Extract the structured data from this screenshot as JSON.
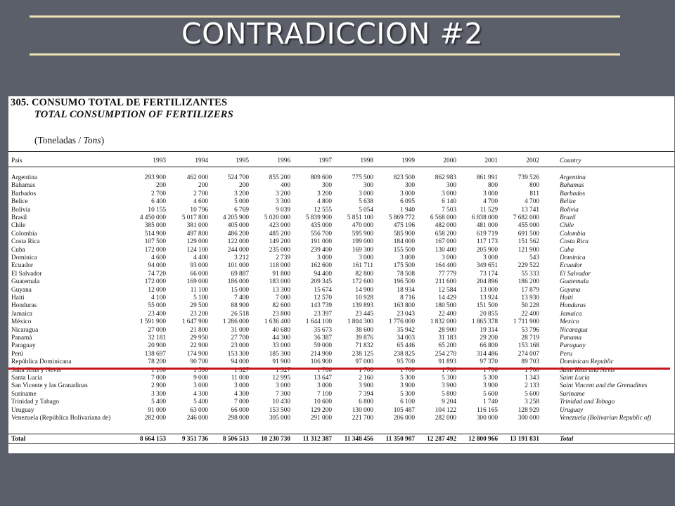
{
  "slide": {
    "title": "CONTRADICCION #2"
  },
  "document": {
    "title_es": "305. CONSUMO TOTAL DE FERTILIZANTES",
    "title_en": "TOTAL CONSUMPTION OF FERTILIZERS",
    "units_open": "(Toneladas / ",
    "units_tons": "Tons",
    "units_close": ")",
    "table": {
      "header_left": "País",
      "years": [
        "1993",
        "1994",
        "1995",
        "1996",
        "1997",
        "1998",
        "1999",
        "2000",
        "2001",
        "2002"
      ],
      "header_right": "Country",
      "rows": [
        {
          "pais": "Argentina",
          "country": "Argentina",
          "values": [
            "293 900",
            "462 000",
            "524 700",
            "855 200",
            "809 600",
            "775 500",
            "823 500",
            "862 983",
            "861 991",
            "739 526"
          ]
        },
        {
          "pais": "Bahamas",
          "country": "Bahamas",
          "values": [
            "200",
            "200",
            "200",
            "400",
            "300",
            "300",
            "300",
            "300",
            "800",
            "800"
          ]
        },
        {
          "pais": "Barbados",
          "country": "Barbados",
          "values": [
            "2 700",
            "2 700",
            "3 200",
            "3 200",
            "3 200",
            "3 000",
            "3 000",
            "3 000",
            "3 000",
            "811"
          ]
        },
        {
          "pais": "Belice",
          "country": "Belize",
          "values": [
            "6 400",
            "4 600",
            "5 000",
            "3 300",
            "4 800",
            "5 638",
            "6 095",
            "6 140",
            "4 700",
            "4 700"
          ]
        },
        {
          "pais": "Bolivia",
          "country": "Bolivia",
          "values": [
            "10 155",
            "10 796",
            "6 769",
            "9 039",
            "12 555",
            "5 054",
            "1 940",
            "7 503",
            "11 529",
            "13 741"
          ]
        },
        {
          "pais": "Brasil",
          "country": "Brazil",
          "values": [
            "4 450 000",
            "5 017 800",
            "4 205 900",
            "5 020 000",
            "5 839 900",
            "5 851 100",
            "5 869 772",
            "6 568 000",
            "6 838 000",
            "7 682 000"
          ]
        },
        {
          "pais": "Chile",
          "country": "Chile",
          "values": [
            "385 000",
            "381 000",
            "405 000",
            "423 000",
            "435 000",
            "470 000",
            "475 196",
            "482 000",
            "481 000",
            "455 000"
          ]
        },
        {
          "pais": "Colombia",
          "country": "Colombia",
          "values": [
            "514 900",
            "497 800",
            "486 200",
            "485 200",
            "556 700",
            "595 900",
            "585 900",
            "658 200",
            "619 719",
            "691 500"
          ]
        },
        {
          "pais": "Costa Rica",
          "country": "Costa Rica",
          "values": [
            "107 500",
            "129 000",
            "122 000",
            "149 200",
            "191 000",
            "199 000",
            "184 000",
            "167 000",
            "117 173",
            "151 562"
          ]
        },
        {
          "pais": "Cuba",
          "country": "Cuba",
          "values": [
            "172 000",
            "124 100",
            "244 000",
            "235 000",
            "239 400",
            "169 300",
            "155 500",
            "130 400",
            "205 900",
            "121 900"
          ]
        },
        {
          "pais": "Dominica",
          "country": "Dominica",
          "values": [
            "4 600",
            "4 400",
            "3 212",
            "2 739",
            "3 000",
            "3 000",
            "3 000",
            "3 000",
            "3 000",
            "543"
          ]
        },
        {
          "pais": "Ecuador",
          "country": "Ecuador",
          "values": [
            "94 000",
            "93 000",
            "101 000",
            "118 000",
            "162 600",
            "161 711",
            "175 500",
            "164 400",
            "349 651",
            "229 522"
          ]
        },
        {
          "pais": "El Salvador",
          "country": "El Salvador",
          "values": [
            "74 720",
            "66 000",
            "69 887",
            "91 800",
            "94 400",
            "82 800",
            "78 508",
            "77 779",
            "73 174",
            "55 333"
          ]
        },
        {
          "pais": "Guatemala",
          "country": "Guatemala",
          "values": [
            "172 000",
            "169 000",
            "186 000",
            "183 000",
            "209 345",
            "172 600",
            "196 500",
            "211 600",
            "204 896",
            "186 200"
          ]
        },
        {
          "pais": "Guyana",
          "country": "Guyana",
          "values": [
            "12 000",
            "11 100",
            "15 000",
            "13 300",
            "15 674",
            "14 900",
            "18 934",
            "12 584",
            "13 000",
            "17 879"
          ]
        },
        {
          "pais": "Haiti",
          "country": "Haiti",
          "values": [
            "4 100",
            "5 100",
            "7 400",
            "7 000",
            "12 570",
            "10 928",
            "8 716",
            "14 429",
            "13 924",
            "13 930"
          ]
        },
        {
          "pais": "Honduras",
          "country": "Honduras",
          "values": [
            "55 000",
            "29 500",
            "88 900",
            "82 600",
            "143 739",
            "139 893",
            "163 800",
            "180 500",
            "151 500",
            "50 228"
          ]
        },
        {
          "pais": "Jamaica",
          "country": "Jamaica",
          "values": [
            "23 400",
            "23 200",
            "26 518",
            "23 800",
            "23 397",
            "23 445",
            "23 043",
            "22 400",
            "20 855",
            "22 400"
          ]
        },
        {
          "pais": "México",
          "country": "Mexico",
          "values": [
            "1 591 900",
            "1 647 900",
            "1 286 000",
            "1 636 400",
            "1 644 100",
            "1 804 300",
            "1 776 000",
            "1 832 000",
            "1 865 378",
            "1 711 900"
          ]
        },
        {
          "pais": "Nicaragua",
          "country": "Nicaragua",
          "values": [
            "27 000",
            "21 800",
            "31 000",
            "40 680",
            "35 673",
            "38 600",
            "35 942",
            "28 900",
            "19 314",
            "53 796"
          ]
        },
        {
          "pais": "Panamá",
          "country": "Panama",
          "values": [
            "32 181",
            "29 950",
            "27 700",
            "44 300",
            "36 387",
            "39 876",
            "34 003",
            "31 183",
            "29 200",
            "28 719"
          ]
        },
        {
          "pais": "Paraguay",
          "country": "Paraguay",
          "values": [
            "20 900",
            "22 900",
            "23 000",
            "33 000",
            "59 000",
            "71 832",
            "65 446",
            "65 200",
            "66 800",
            "153 168"
          ]
        },
        {
          "pais": "Perú",
          "country": "Peru",
          "values": [
            "138 697",
            "174 900",
            "153 300",
            "185 300",
            "214 900",
            "238 125",
            "238 825",
            "254 270",
            "314 486",
            "274 007"
          ]
        },
        {
          "pais": "República Dominicana",
          "country": "Dominican Republic",
          "values": [
            "78 200",
            "90 700",
            "94 000",
            "91 900",
            "106 900",
            "97 000",
            "95 700",
            "91 893",
            "97 370",
            "89 703"
          ]
        },
        {
          "pais": "Saint Kitts y Nevis",
          "country": "Saint Kitts and Nevis",
          "values": [
            "1 100",
            "1 590",
            "1 327",
            "1 327",
            "1 700",
            "1 700",
            "1 700",
            "1 700",
            "1 700",
            "1 700"
          ]
        },
        {
          "pais": "Santa Lucía",
          "country": "Saint Lucia",
          "values": [
            "7 000",
            "9 000",
            "11 000",
            "12 995",
            "13 647",
            "2 160",
            "5 300",
            "5 300",
            "5 300",
            "1 343"
          ]
        },
        {
          "pais": "San Vicente y las Granadinas",
          "country": "Saint Vincent and the Grenadines",
          "values": [
            "2 900",
            "3 000",
            "3 000",
            "3 000",
            "3 000",
            "3 900",
            "3 900",
            "3 900",
            "3 900",
            "2 133"
          ]
        },
        {
          "pais": "Suriname",
          "country": "Suriname",
          "values": [
            "3 300",
            "4 300",
            "4 300",
            "7 300",
            "7 100",
            "7 394",
            "5 300",
            "5 800",
            "5 600",
            "5 600"
          ]
        },
        {
          "pais": "Trinidad y Tabago",
          "country": "Trinidad and Tobago",
          "values": [
            "5 400",
            "5 400",
            "7 000",
            "10 430",
            "10 600",
            "6 800",
            "6 100",
            "9 204",
            "1 740",
            "3 258"
          ]
        },
        {
          "pais": "Uruguay",
          "country": "Uruguay",
          "values": [
            "91 000",
            "63 000",
            "66 000",
            "153 500",
            "129 200",
            "130 000",
            "105 487",
            "104 122",
            "116 165",
            "128 929"
          ]
        },
        {
          "pais": "Venezuela (República Bolivariana de)",
          "country": "Venezuela (Bolivarian Republic of)",
          "values": [
            "282 000",
            "246 000",
            "298 000",
            "305 000",
            "291 000",
            "221 700",
            "206 000",
            "282 000",
            "300 000",
            "300 000"
          ]
        }
      ],
      "total": {
        "pais": "Total",
        "country": "Total",
        "values": [
          "8 664 153",
          "9 351 736",
          "8 506 513",
          "10 230 730",
          "11 312 387",
          "11 348 456",
          "11 350 907",
          "12 287 492",
          "12 800 966",
          "13 191 831"
        ]
      }
    }
  }
}
